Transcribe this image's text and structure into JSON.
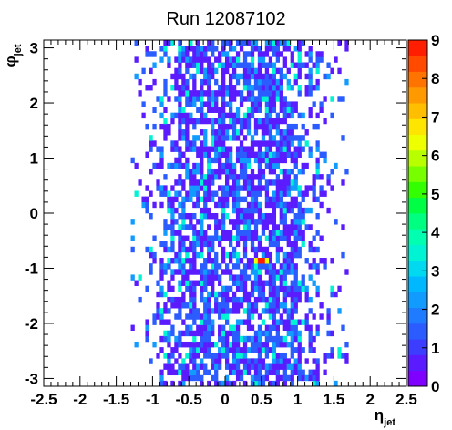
{
  "chart_data": {
    "type": "heatmap",
    "title": "Run 12087102",
    "xlabel": {
      "symbol": "η",
      "subscript": "jet"
    },
    "ylabel": {
      "symbol": "φ",
      "subscript": "jet"
    },
    "xlim": [
      -2.5,
      2.5
    ],
    "ylim": [
      -3.1416,
      3.1416
    ],
    "zlim": [
      0,
      9
    ],
    "x_ticks": [
      {
        "value": -2.5,
        "label": "-2.5"
      },
      {
        "value": -2,
        "label": "-2"
      },
      {
        "value": -1.5,
        "label": "-1.5"
      },
      {
        "value": -1,
        "label": "-1"
      },
      {
        "value": -0.5,
        "label": "-0.5"
      },
      {
        "value": 0,
        "label": "0"
      },
      {
        "value": 0.5,
        "label": "0.5"
      },
      {
        "value": 1,
        "label": "1"
      },
      {
        "value": 1.5,
        "label": "1.5"
      },
      {
        "value": 2,
        "label": "2"
      },
      {
        "value": 2.5,
        "label": "2.5"
      }
    ],
    "y_ticks": [
      {
        "value": -3,
        "label": "-3"
      },
      {
        "value": -2,
        "label": "-2"
      },
      {
        "value": -1,
        "label": "-1"
      },
      {
        "value": 0,
        "label": "0"
      },
      {
        "value": 1,
        "label": "1"
      },
      {
        "value": 2,
        "label": "2"
      },
      {
        "value": 3,
        "label": "3"
      }
    ],
    "z_ticks": [
      {
        "value": 0,
        "label": "0"
      },
      {
        "value": 1,
        "label": "1"
      },
      {
        "value": 2,
        "label": "2"
      },
      {
        "value": 3,
        "label": "3"
      },
      {
        "value": 4,
        "label": "4"
      },
      {
        "value": 5,
        "label": "5"
      },
      {
        "value": 6,
        "label": "6"
      },
      {
        "value": 7,
        "label": "7"
      },
      {
        "value": 8,
        "label": "8"
      },
      {
        "value": 9,
        "label": "9"
      }
    ],
    "grid": false,
    "legend": "color scale on the right, 0 to 9",
    "palette": [
      "#7f00ff",
      "#5a1bff",
      "#3d3dff",
      "#2a5cff",
      "#1f7bff",
      "#119bff",
      "#00b8ff",
      "#00d9f0",
      "#00f3d2",
      "#00ffb0",
      "#00ff80",
      "#00ff44",
      "#33ff00",
      "#77ff00",
      "#b8ff00",
      "#eeff00",
      "#ffe600",
      "#ffbf00",
      "#ff9900",
      "#ff7300",
      "#ff4a00",
      "#ff1f00"
    ],
    "x_bins": {
      "count": 100,
      "range": [
        -2.5,
        2.5
      ]
    },
    "y_bins": {
      "count": 62,
      "range": [
        -3.1416,
        3.1416
      ]
    },
    "occupied_eta": [
      -1.3,
      1.7
    ],
    "typical_counts": "1-3 entries per bin, isolated bins up to 4",
    "hot_spot": {
      "eta": 0.5,
      "phi": -0.9,
      "value": 9
    }
  }
}
